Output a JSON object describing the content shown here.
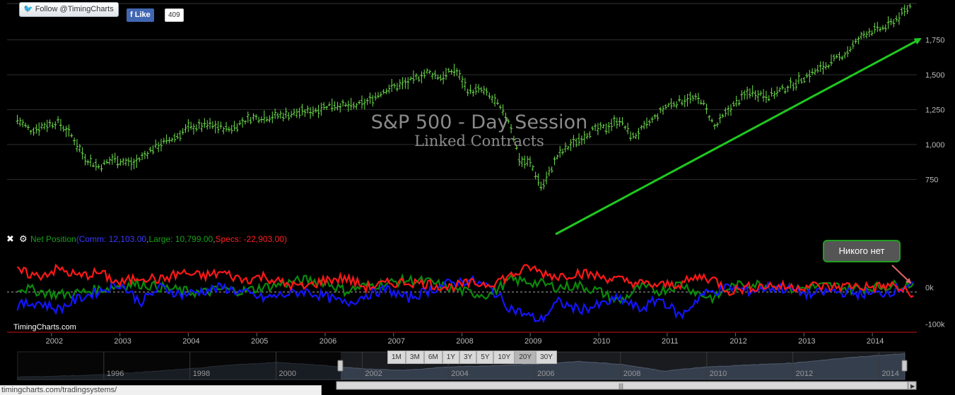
{
  "social": {
    "twitter_label": "Follow @TimingCharts",
    "fb_like_label": "Like",
    "fb_like_count": "409"
  },
  "colors": {
    "background": "#000000",
    "price": "#6ee04c",
    "comm": "#1414ff",
    "large": "#0b8a0b",
    "specs": "#ff1818",
    "arrow": "#1ec81e"
  },
  "chart_data": [
    {
      "type": "ohlc",
      "title": "S&P 500 - Day Session",
      "subtitle": "Linked Contracts",
      "y_ticks": [
        "1,750",
        "1,500",
        "1,250",
        "1,000",
        "750"
      ],
      "y_tick_values": [
        1750,
        1500,
        1250,
        1000,
        750
      ],
      "ylim": [
        560,
        2010
      ],
      "x": [
        2001.5,
        2001.7,
        2001.9,
        2002.1,
        2002.3,
        2002.5,
        2002.7,
        2002.9,
        2003.2,
        2003.5,
        2003.8,
        2004.0,
        2004.3,
        2004.6,
        2004.9,
        2005.2,
        2005.5,
        2005.8,
        2006.1,
        2006.4,
        2006.6,
        2006.9,
        2007.2,
        2007.5,
        2007.7,
        2007.9,
        2008.1,
        2008.3,
        2008.5,
        2008.7,
        2008.85,
        2009.0,
        2009.17,
        2009.4,
        2009.6,
        2009.9,
        2010.1,
        2010.3,
        2010.5,
        2010.8,
        2011.0,
        2011.3,
        2011.5,
        2011.7,
        2011.9,
        2012.2,
        2012.5,
        2012.8,
        2013.0,
        2013.3,
        2013.6,
        2013.9,
        2014.2,
        2014.4,
        2014.55
      ],
      "values": [
        1180,
        1100,
        1140,
        1160,
        1060,
        900,
        840,
        900,
        860,
        980,
        1050,
        1120,
        1140,
        1110,
        1190,
        1200,
        1220,
        1240,
        1290,
        1270,
        1300,
        1400,
        1440,
        1520,
        1480,
        1540,
        1380,
        1390,
        1300,
        1160,
        880,
        870,
        690,
        920,
        1000,
        1100,
        1120,
        1180,
        1050,
        1180,
        1280,
        1330,
        1320,
        1120,
        1250,
        1380,
        1350,
        1420,
        1480,
        1560,
        1650,
        1800,
        1840,
        1920,
        1990
      ],
      "annotations": []
    },
    {
      "type": "line",
      "title": "Net Position",
      "legend": {
        "comm": "Comm: 12,103.00",
        "large": "Large: 10,799.00",
        "specs": "Specs: -22,903.00"
      },
      "y_ticks": [
        "0k",
        "-100k"
      ],
      "y_tick_values": [
        0,
        -100000
      ],
      "ylim": [
        -120000,
        110000
      ],
      "x": [
        2001.5,
        2001.8,
        2002.1,
        2002.4,
        2002.7,
        2003.0,
        2003.3,
        2003.6,
        2003.9,
        2004.2,
        2004.5,
        2004.8,
        2005.1,
        2005.4,
        2005.7,
        2006.0,
        2006.3,
        2006.6,
        2006.9,
        2007.2,
        2007.5,
        2007.8,
        2008.1,
        2008.4,
        2008.7,
        2009.0,
        2009.15,
        2009.4,
        2009.7,
        2010.0,
        2010.3,
        2010.6,
        2010.9,
        2011.2,
        2011.5,
        2011.7,
        2011.9,
        2012.2,
        2012.5,
        2012.8,
        2013.1,
        2013.4,
        2013.7,
        2014.0,
        2014.3,
        2014.6
      ],
      "series": [
        {
          "name": "Comm",
          "values": [
            -50000,
            -40000,
            -60000,
            -30000,
            -10000,
            10000,
            -40000,
            0,
            -20000,
            -10000,
            0,
            -15000,
            -30000,
            -20000,
            -10000,
            -25000,
            -45000,
            -20000,
            -5000,
            -30000,
            -10000,
            10000,
            20000,
            0,
            -55000,
            -80000,
            -90000,
            -40000,
            -60000,
            -50000,
            -30000,
            -60000,
            -30000,
            -80000,
            -20000,
            -10000,
            0,
            -10000,
            0,
            -5000,
            -20000,
            -10000,
            -15000,
            -20000,
            -10000,
            12103
          ]
        },
        {
          "name": "Large",
          "values": [
            0,
            -10000,
            -20000,
            -15000,
            -5000,
            5000,
            10000,
            0,
            -10000,
            -15000,
            -5000,
            -10000,
            0,
            10000,
            20000,
            15000,
            -10000,
            5000,
            10000,
            20000,
            15000,
            0,
            -15000,
            -20000,
            20000,
            15000,
            10000,
            0,
            5000,
            -10000,
            -40000,
            0,
            -10000,
            10000,
            -20000,
            -30000,
            0,
            10000,
            5000,
            -5000,
            0,
            5000,
            -5000,
            0,
            5000,
            10799
          ]
        },
        {
          "name": "Specs",
          "values": [
            45000,
            30000,
            50000,
            30000,
            40000,
            10000,
            30000,
            20000,
            40000,
            30000,
            40000,
            20000,
            30000,
            10000,
            0,
            20000,
            25000,
            0,
            10000,
            15000,
            10000,
            0,
            10000,
            10000,
            30000,
            55000,
            40000,
            30000,
            40000,
            30000,
            20000,
            10000,
            5000,
            10000,
            30000,
            20000,
            -10000,
            0,
            5000,
            0,
            5000,
            0,
            5000,
            0,
            5000,
            -22903
          ]
        }
      ]
    },
    {
      "type": "area",
      "title": "",
      "x_tick_labels": [
        "1996",
        "1998",
        "2000",
        "2002",
        "2004",
        "2006",
        "2008",
        "2010",
        "2012",
        "2014"
      ],
      "x_tick_values": [
        1996,
        1998,
        2000,
        2002,
        2004,
        2006,
        2008,
        2010,
        2012,
        2014
      ],
      "xlim": [
        1994,
        2014.6
      ],
      "selected_range": [
        2001.5,
        2014.6
      ],
      "x": [
        1994,
        1995,
        1996,
        1997,
        1998,
        1999,
        2000,
        2001,
        2002,
        2003,
        2004,
        2005,
        2006,
        2007,
        2008,
        2009,
        2010,
        2011,
        2012,
        2013,
        2014,
        2014.6
      ],
      "values": [
        460,
        520,
        620,
        800,
        1000,
        1250,
        1420,
        1250,
        1000,
        900,
        1120,
        1200,
        1300,
        1480,
        1300,
        850,
        1130,
        1250,
        1380,
        1650,
        1880,
        1990
      ]
    }
  ],
  "x_axis": {
    "labels": [
      "2002",
      "2003",
      "2004",
      "2005",
      "2006",
      "2007",
      "2008",
      "2009",
      "2010",
      "2011",
      "2012",
      "2013",
      "2014"
    ],
    "values": [
      2002,
      2003,
      2004,
      2005,
      2006,
      2007,
      2008,
      2009,
      2010,
      2011,
      2012,
      2013,
      2014
    ],
    "xlim": [
      2001.35,
      2014.65
    ]
  },
  "watermark": "TimingCharts.com",
  "callout": "Никого нет",
  "panel_icons": [
    "close-icon",
    "gear-icon"
  ],
  "range_buttons": [
    "1M",
    "3M",
    "6M",
    "1Y",
    "3Y",
    "5Y",
    "10Y",
    "20Y",
    "30Y"
  ],
  "range_selected": "20Y",
  "status_url": "timingcharts.com/tradingsystems/"
}
